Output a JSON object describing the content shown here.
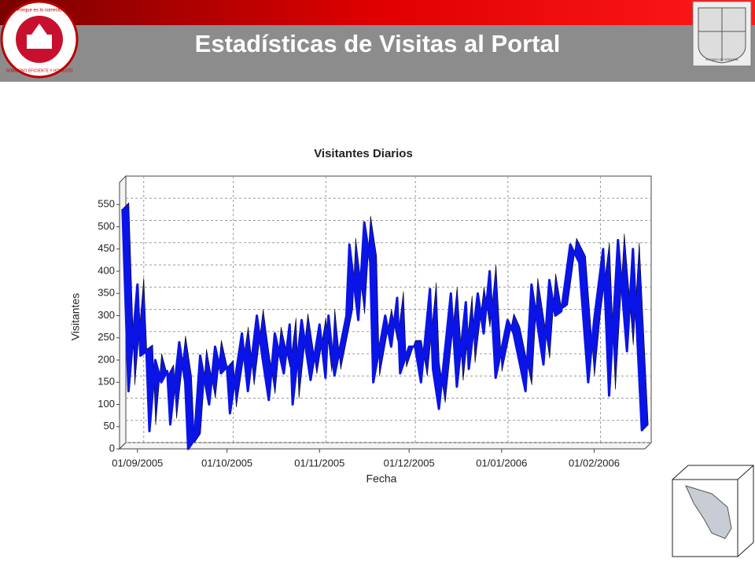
{
  "header": {
    "title": "Estadísticas de Visitas al Portal",
    "logo_motto": "Porque es lo correcto",
    "logo_slogan": "GOBIERNO EFICIENTE Y HONESTO",
    "seal_text": "ESTADO DE SONORA"
  },
  "chart_data": {
    "type": "line",
    "title": "Visitantes Diarios",
    "x_label": "Fecha",
    "y_label": "Visitantes",
    "x": [
      "2005-08-27",
      "2005-08-29",
      "2005-09-01",
      "2005-09-02",
      "2005-09-04",
      "2005-09-05",
      "2005-09-07",
      "2005-09-09",
      "2005-09-11",
      "2005-09-12",
      "2005-09-15",
      "2005-09-17",
      "2005-09-18",
      "2005-09-20",
      "2005-09-22",
      "2005-09-25",
      "2005-09-27",
      "2005-09-29",
      "2005-10-01",
      "2005-10-02",
      "2005-10-06",
      "2005-10-08",
      "2005-10-11",
      "2005-10-13",
      "2005-10-15",
      "2005-10-17",
      "2005-10-20",
      "2005-10-22",
      "2005-10-23",
      "2005-10-26",
      "2005-10-29",
      "2005-11-01",
      "2005-11-03",
      "2005-11-04",
      "2005-11-06",
      "2005-11-10",
      "2005-11-11",
      "2005-11-14",
      "2005-11-16",
      "2005-11-18",
      "2005-11-19",
      "2005-11-23",
      "2005-11-25",
      "2005-11-27",
      "2005-11-28",
      "2005-12-01",
      "2005-12-03",
      "2005-12-05",
      "2005-12-08",
      "2005-12-09",
      "2005-12-11",
      "2005-12-15",
      "2005-12-17",
      "2005-12-20",
      "2005-12-21",
      "2005-12-24",
      "2005-12-26",
      "2005-12-28",
      "2005-12-30",
      "2006-01-03",
      "2006-01-05",
      "2006-01-09",
      "2006-01-11",
      "2006-01-13",
      "2006-01-15",
      "2006-01-17",
      "2006-01-19",
      "2006-01-21",
      "2006-01-24",
      "2006-01-27",
      "2006-01-30",
      "2006-02-01",
      "2006-02-04",
      "2006-02-06",
      "2006-02-09",
      "2006-02-12",
      "2006-02-14",
      "2006-02-17"
    ],
    "series": [
      {
        "name": "Visitantes",
        "color": "#0a14e6",
        "values": [
          540,
          130,
          370,
          210,
          220,
          40,
          200,
          150,
          175,
          55,
          240,
          150,
          0,
          20,
          210,
          100,
          230,
          170,
          185,
          80,
          260,
          130,
          300,
          200,
          110,
          260,
          170,
          280,
          100,
          290,
          155,
          280,
          160,
          300,
          165,
          300,
          460,
          290,
          510,
          420,
          150,
          300,
          230,
          340,
          170,
          230,
          230,
          150,
          360,
          180,
          90,
          350,
          140,
          330,
          180,
          350,
          260,
          400,
          160,
          290,
          260,
          130,
          370,
          280,
          190,
          380,
          300,
          310,
          460,
          420,
          150,
          290,
          450,
          120,
          470,
          220,
          450,
          40
        ]
      }
    ],
    "xlim": [
      "2005-08-26",
      "2006-02-18"
    ],
    "xticks": [
      {
        "value": "2005-09-01",
        "label": "01/09/2005"
      },
      {
        "value": "2005-10-01",
        "label": "01/10/2005"
      },
      {
        "value": "2005-11-01",
        "label": "01/11/2005"
      },
      {
        "value": "2005-12-01",
        "label": "01/12/2005"
      },
      {
        "value": "2006-01-01",
        "label": "01/01/2006"
      },
      {
        "value": "2006-02-01",
        "label": "01/02/2006"
      }
    ],
    "ylim": [
      0,
      600
    ],
    "yticks": [
      0,
      50,
      100,
      150,
      200,
      250,
      300,
      350,
      400,
      450,
      500,
      550
    ],
    "grid": true
  }
}
